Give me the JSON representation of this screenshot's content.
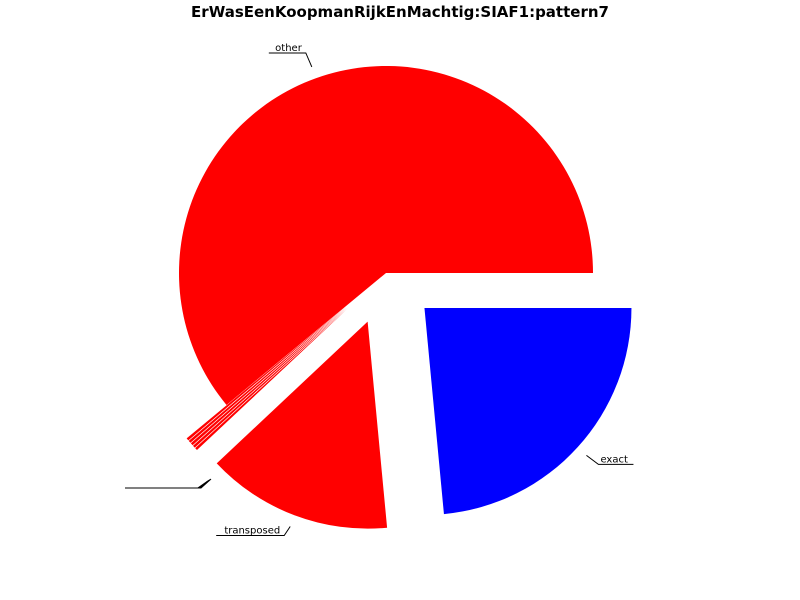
{
  "chart_data": {
    "type": "pie",
    "title": "ErWasEenKoopmanRijkEnMachtig:SIAF1:pattern7",
    "slices": [
      {
        "label": "exact",
        "value": 23.5,
        "color": "#0000ff"
      },
      {
        "label": "transposed",
        "value": 14.5,
        "color": "#ff0000"
      },
      {
        "label": "",
        "value": 0.2,
        "color": "#ff0000"
      },
      {
        "label": "",
        "value": 0.2,
        "color": "#ff0000"
      },
      {
        "label": "",
        "value": 0.2,
        "color": "#ff0000"
      },
      {
        "label": "",
        "value": 0.2,
        "color": "#ff0000"
      },
      {
        "label": "",
        "value": 0.2,
        "color": "#ff0000"
      },
      {
        "label": "other",
        "value": 61.0,
        "color": "#ff0000"
      }
    ]
  }
}
